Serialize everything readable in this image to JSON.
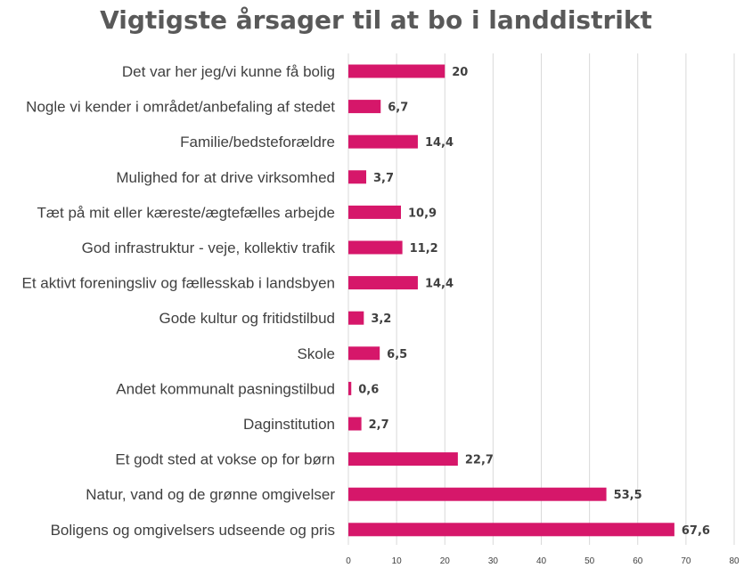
{
  "chart_data": {
    "type": "bar",
    "orientation": "horizontal",
    "title": "Vigtigste årsager til at bo i landdistrikt",
    "categories": [
      "Det var her jeg/vi kunne få bolig",
      "Nogle vi kender i området/anbefaling af stedet",
      "Familie/bedsteforældre",
      "Mulighed for at drive virksomhed",
      "Tæt på mit eller kæreste/ægtefælles arbejde",
      "God infrastruktur - veje, kollektiv trafik",
      "Et aktivt foreningsliv og fællesskab i landsbyen",
      "Gode kultur og fritidstilbud",
      "Skole",
      "Andet kommunalt pasningstilbud",
      "Daginstitution",
      "Et godt sted at vokse op for børn",
      "Natur, vand og de grønne omgivelser",
      "Boligens og omgivelsers udseende og pris"
    ],
    "values": [
      20,
      6.7,
      14.4,
      3.7,
      10.9,
      11.2,
      14.4,
      3.2,
      6.5,
      0.6,
      2.7,
      22.7,
      53.5,
      67.6
    ],
    "value_labels": [
      "20",
      "6,7",
      "14,4",
      "3,7",
      "10,9",
      "11,2",
      "14,4",
      "3,2",
      "6,5",
      "0,6",
      "2,7",
      "22,7",
      "53,5",
      "67,6"
    ],
    "xlim": [
      0,
      80
    ],
    "xticks": [
      0,
      10,
      20,
      30,
      40,
      50,
      60,
      70,
      80
    ],
    "grid": "vertical",
    "bar_color": "#D6176A",
    "xlabel": "",
    "ylabel": ""
  }
}
